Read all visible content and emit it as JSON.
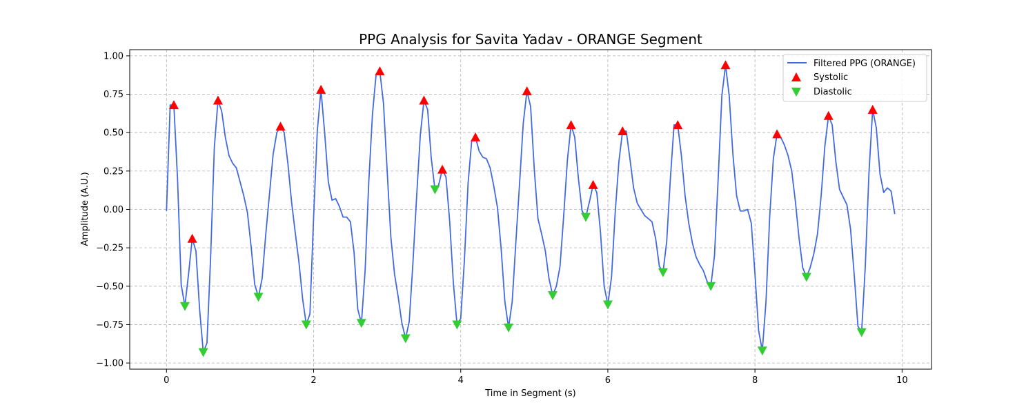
{
  "chart_data": {
    "type": "line",
    "title": "PPG Analysis for Savita Yadav - ORANGE Segment",
    "xlabel": "Time in Segment (s)",
    "ylabel": "Amplitude (A.U.)",
    "xlim": [
      -0.5,
      10.4
    ],
    "ylim": [
      -1.04,
      1.04
    ],
    "xticks": [
      0,
      2,
      4,
      6,
      8,
      10
    ],
    "yticks": [
      -1.0,
      -0.75,
      -0.5,
      -0.25,
      0.0,
      0.25,
      0.5,
      0.75,
      1.0
    ],
    "grid": true,
    "legend_position": "top-right",
    "colors": {
      "signal": "#4169e1",
      "systolic": "#ff0000",
      "diastolic": "#32cd32"
    },
    "series": [
      {
        "name": "Filtered PPG (ORANGE)",
        "kind": "line",
        "x": [
          0.0,
          0.05,
          0.1,
          0.15,
          0.2,
          0.25,
          0.3,
          0.35,
          0.4,
          0.45,
          0.5,
          0.55,
          0.6,
          0.65,
          0.7,
          0.75,
          0.8,
          0.85,
          0.9,
          0.95,
          1.0,
          1.05,
          1.1,
          1.15,
          1.2,
          1.25,
          1.3,
          1.35,
          1.4,
          1.45,
          1.5,
          1.55,
          1.6,
          1.65,
          1.7,
          1.75,
          1.8,
          1.85,
          1.9,
          1.95,
          2.0,
          2.05,
          2.1,
          2.15,
          2.2,
          2.25,
          2.3,
          2.35,
          2.4,
          2.45,
          2.5,
          2.55,
          2.6,
          2.65,
          2.7,
          2.75,
          2.8,
          2.85,
          2.9,
          2.95,
          3.0,
          3.05,
          3.1,
          3.15,
          3.2,
          3.25,
          3.3,
          3.35,
          3.4,
          3.45,
          3.5,
          3.55,
          3.6,
          3.65,
          3.7,
          3.75,
          3.8,
          3.85,
          3.9,
          3.95,
          4.0,
          4.05,
          4.1,
          4.15,
          4.2,
          4.25,
          4.3,
          4.35,
          4.4,
          4.45,
          4.5,
          4.55,
          4.6,
          4.65,
          4.7,
          4.75,
          4.8,
          4.85,
          4.9,
          4.95,
          5.0,
          5.05,
          5.1,
          5.15,
          5.2,
          5.25,
          5.3,
          5.35,
          5.4,
          5.45,
          5.5,
          5.55,
          5.6,
          5.65,
          5.7,
          5.75,
          5.8,
          5.85,
          5.9,
          5.95,
          6.0,
          6.05,
          6.1,
          6.15,
          6.2,
          6.25,
          6.3,
          6.35,
          6.4,
          6.45,
          6.5,
          6.55,
          6.6,
          6.65,
          6.7,
          6.75,
          6.8,
          6.85,
          6.9,
          6.95,
          7.0,
          7.05,
          7.1,
          7.15,
          7.2,
          7.25,
          7.3,
          7.35,
          7.4,
          7.45,
          7.5,
          7.55,
          7.6,
          7.65,
          7.7,
          7.75,
          7.8,
          7.85,
          7.9,
          7.95,
          8.0,
          8.05,
          8.1,
          8.15,
          8.2,
          8.25,
          8.3,
          8.35,
          8.4,
          8.45,
          8.5,
          8.55,
          8.6,
          8.65,
          8.7,
          8.75,
          8.8,
          8.85,
          8.9,
          8.95,
          9.0,
          9.05,
          9.1,
          9.15,
          9.2,
          9.25,
          9.3,
          9.35,
          9.4,
          9.45,
          9.5,
          9.55,
          9.6,
          9.65,
          9.7,
          9.75,
          9.8,
          9.85,
          9.9
        ],
        "y": [
          -0.01,
          0.68,
          0.68,
          0.2,
          -0.49,
          -0.63,
          -0.42,
          -0.19,
          -0.27,
          -0.65,
          -0.93,
          -0.87,
          -0.31,
          0.4,
          0.71,
          0.64,
          0.47,
          0.35,
          0.3,
          0.27,
          0.18,
          0.09,
          -0.02,
          -0.24,
          -0.49,
          -0.57,
          -0.45,
          -0.16,
          0.1,
          0.36,
          0.5,
          0.54,
          0.5,
          0.3,
          0.05,
          -0.15,
          -0.34,
          -0.58,
          -0.75,
          -0.68,
          -0.05,
          0.51,
          0.78,
          0.5,
          0.18,
          0.06,
          0.07,
          0.02,
          -0.05,
          -0.05,
          -0.08,
          -0.28,
          -0.65,
          -0.74,
          -0.4,
          0.18,
          0.62,
          0.88,
          0.9,
          0.69,
          0.25,
          -0.18,
          -0.42,
          -0.57,
          -0.74,
          -0.84,
          -0.73,
          -0.35,
          0.08,
          0.48,
          0.71,
          0.65,
          0.33,
          0.13,
          0.16,
          0.26,
          0.21,
          -0.08,
          -0.48,
          -0.75,
          -0.71,
          -0.33,
          0.17,
          0.45,
          0.47,
          0.38,
          0.34,
          0.33,
          0.27,
          0.15,
          0.01,
          -0.26,
          -0.6,
          -0.77,
          -0.6,
          -0.21,
          0.17,
          0.56,
          0.77,
          0.67,
          0.26,
          -0.06,
          -0.16,
          -0.27,
          -0.45,
          -0.56,
          -0.5,
          -0.37,
          -0.04,
          0.32,
          0.55,
          0.47,
          0.2,
          -0.01,
          -0.05,
          0.05,
          0.16,
          0.11,
          -0.15,
          -0.5,
          -0.62,
          -0.44,
          -0.02,
          0.31,
          0.51,
          0.51,
          0.33,
          0.14,
          0.04,
          0.0,
          -0.04,
          -0.06,
          -0.08,
          -0.19,
          -0.37,
          -0.41,
          -0.21,
          0.2,
          0.55,
          0.55,
          0.35,
          0.09,
          -0.09,
          -0.22,
          -0.31,
          -0.36,
          -0.4,
          -0.47,
          -0.5,
          -0.3,
          0.2,
          0.74,
          0.94,
          0.74,
          0.36,
          0.09,
          -0.01,
          -0.01,
          0.0,
          -0.09,
          -0.42,
          -0.79,
          -0.92,
          -0.6,
          -0.05,
          0.33,
          0.49,
          0.47,
          0.42,
          0.35,
          0.25,
          0.05,
          -0.19,
          -0.38,
          -0.44,
          -0.38,
          -0.29,
          -0.16,
          0.09,
          0.41,
          0.61,
          0.55,
          0.31,
          0.13,
          0.08,
          0.03,
          -0.13,
          -0.43,
          -0.76,
          -0.8,
          -0.37,
          0.24,
          0.65,
          0.53,
          0.23,
          0.11,
          0.14,
          0.12,
          -0.03
        ]
      },
      {
        "name": "Systolic",
        "kind": "markers",
        "marker": "triangle-up",
        "x": [
          0.1,
          0.35,
          0.7,
          1.55,
          2.1,
          2.9,
          3.5,
          3.75,
          4.2,
          4.9,
          5.5,
          5.8,
          6.2,
          6.95,
          7.6,
          8.3,
          9.0,
          9.6
        ],
        "y": [
          0.68,
          -0.19,
          0.71,
          0.54,
          0.78,
          0.9,
          0.71,
          0.26,
          0.47,
          0.77,
          0.55,
          0.16,
          0.51,
          0.55,
          0.94,
          0.49,
          0.61,
          0.65
        ]
      },
      {
        "name": "Diastolic",
        "kind": "markers",
        "marker": "triangle-down",
        "x": [
          0.25,
          0.5,
          1.25,
          1.9,
          2.65,
          3.25,
          3.65,
          3.95,
          4.65,
          5.25,
          5.7,
          6.0,
          6.75,
          7.4,
          8.1,
          8.7,
          9.45
        ],
        "y": [
          -0.63,
          -0.93,
          -0.57,
          -0.75,
          -0.74,
          -0.84,
          0.13,
          -0.75,
          -0.77,
          -0.56,
          -0.05,
          -0.62,
          -0.41,
          -0.5,
          -0.92,
          -0.44,
          -0.8
        ]
      }
    ]
  }
}
